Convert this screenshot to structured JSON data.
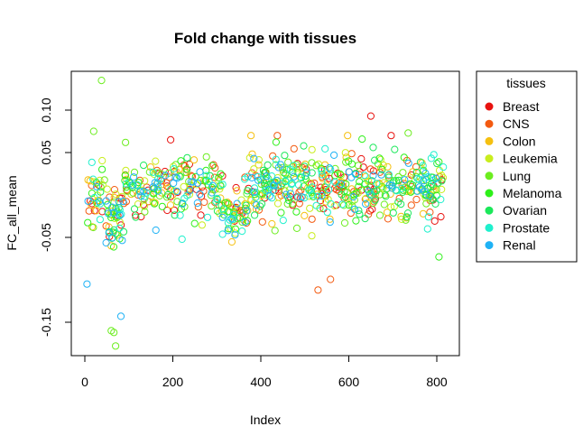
{
  "chart_data": {
    "type": "scatter",
    "title": "Fold change with tissues",
    "xlabel": "Index",
    "ylabel": "FC_all_mean",
    "xlim": [
      0,
      820
    ],
    "ylim": [
      -0.19,
      0.14
    ],
    "x_ticks": [
      0,
      200,
      400,
      600,
      800
    ],
    "x_tick_labels": [
      "0",
      "200",
      "400",
      "600",
      "800"
    ],
    "y_ticks": [
      -0.15,
      -0.05,
      0.05,
      0.1
    ],
    "y_tick_labels": [
      "-0.15",
      "-0.05",
      "0.05",
      "0.10"
    ],
    "grid": false,
    "legend": {
      "title": "tissues",
      "placement": "right",
      "entries": [
        {
          "name": "Breast",
          "color": "#e8120f"
        },
        {
          "name": "CNS",
          "color": "#f35a10"
        },
        {
          "name": "Colon",
          "color": "#f5c010"
        },
        {
          "name": "Leukemia",
          "color": "#c9ed1e"
        },
        {
          "name": "Lung",
          "color": "#6ced1f"
        },
        {
          "name": "Melanoma",
          "color": "#2ef019"
        },
        {
          "name": "Ovarian",
          "color": "#1be85a"
        },
        {
          "name": "Prostate",
          "color": "#1ff0cd"
        },
        {
          "name": "Renal",
          "color": "#1fb2f5"
        }
      ]
    },
    "points_per_series": 90,
    "series": [
      {
        "name": "Breast",
        "color": "#e8120f"
      },
      {
        "name": "CNS",
        "color": "#f35a10"
      },
      {
        "name": "Colon",
        "color": "#f5c010"
      },
      {
        "name": "Leukemia",
        "color": "#c9ed1e"
      },
      {
        "name": "Lung",
        "color": "#6ced1f"
      },
      {
        "name": "Melanoma",
        "color": "#2ef019"
      },
      {
        "name": "Ovarian",
        "color": "#1be85a"
      },
      {
        "name": "Prostate",
        "color": "#1ff0cd"
      },
      {
        "name": "Renal",
        "color": "#1fb2f5"
      }
    ],
    "notable_points": [
      {
        "x": 5,
        "y": -0.105,
        "series": "Renal"
      },
      {
        "x": 20,
        "y": 0.075,
        "series": "Lung"
      },
      {
        "x": 38,
        "y": 0.135,
        "series": "Lung"
      },
      {
        "x": 60,
        "y": -0.16,
        "series": "Lung"
      },
      {
        "x": 66,
        "y": -0.162,
        "series": "Lung"
      },
      {
        "x": 70,
        "y": -0.178,
        "series": "Lung"
      },
      {
        "x": 82,
        "y": -0.143,
        "series": "Renal"
      },
      {
        "x": 195,
        "y": 0.065,
        "series": "Breast"
      },
      {
        "x": 530,
        "y": -0.112,
        "series": "CNS"
      },
      {
        "x": 650,
        "y": 0.093,
        "series": "Breast"
      },
      {
        "x": 735,
        "y": 0.073,
        "series": "Lung"
      },
      {
        "x": 805,
        "y": -0.073,
        "series": "Melanoma"
      }
    ]
  }
}
